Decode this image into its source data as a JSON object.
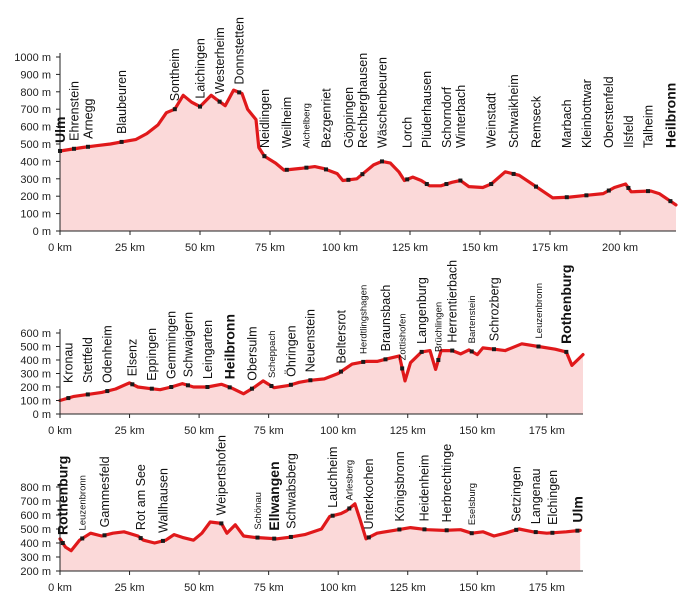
{
  "chart_data": [
    {
      "type": "area",
      "title": "",
      "xlabel": "",
      "ylabel": "",
      "xlim": [
        0,
        220
      ],
      "ylim": [
        0,
        1000
      ],
      "y_unit": " m",
      "x_unit": " km",
      "grid": false,
      "colors": {
        "line": "#e0191b",
        "fill": "#fbd9d9"
      },
      "x_ticks": [
        0,
        25,
        50,
        75,
        100,
        125,
        150,
        175,
        200
      ],
      "y_ticks": [
        0,
        100,
        200,
        300,
        400,
        500,
        600,
        700,
        800,
        900,
        1000
      ],
      "profile": [
        [
          0,
          460
        ],
        [
          8,
          480
        ],
        [
          13,
          490
        ],
        [
          18,
          500
        ],
        [
          23,
          515
        ],
        [
          27,
          525
        ],
        [
          31,
          560
        ],
        [
          35,
          610
        ],
        [
          38,
          680
        ],
        [
          41,
          700
        ],
        [
          44,
          780
        ],
        [
          47,
          740
        ],
        [
          50,
          715
        ],
        [
          54,
          780
        ],
        [
          56,
          755
        ],
        [
          59,
          720
        ],
        [
          62,
          810
        ],
        [
          65,
          790
        ],
        [
          67,
          700
        ],
        [
          70,
          640
        ],
        [
          71,
          480
        ],
        [
          73,
          430
        ],
        [
          77,
          390
        ],
        [
          80,
          350
        ],
        [
          86,
          360
        ],
        [
          91,
          370
        ],
        [
          94,
          360
        ],
        [
          99,
          330
        ],
        [
          101,
          290
        ],
        [
          106,
          300
        ],
        [
          109,
          340
        ],
        [
          112,
          380
        ],
        [
          115,
          400
        ],
        [
          118,
          390
        ],
        [
          121,
          340
        ],
        [
          123,
          290
        ],
        [
          126,
          310
        ],
        [
          129,
          290
        ],
        [
          132,
          260
        ],
        [
          136,
          260
        ],
        [
          140,
          280
        ],
        [
          143,
          290
        ],
        [
          146,
          255
        ],
        [
          151,
          250
        ],
        [
          154,
          270
        ],
        [
          159,
          340
        ],
        [
          164,
          320
        ],
        [
          170,
          255
        ],
        [
          176,
          190
        ],
        [
          182,
          195
        ],
        [
          188,
          205
        ],
        [
          194,
          215
        ],
        [
          198,
          250
        ],
        [
          202,
          270
        ],
        [
          204,
          225
        ],
        [
          211,
          230
        ],
        [
          214,
          215
        ],
        [
          220,
          150
        ]
      ],
      "places": [
        {
          "name": "Ulm",
          "km": 0,
          "bold": true
        },
        {
          "name": "Ehrenstein",
          "km": 5
        },
        {
          "name": "Arnegg",
          "km": 10
        },
        {
          "name": "Blaubeuren",
          "km": 22
        },
        {
          "name": "Sontheim",
          "km": 41
        },
        {
          "name": "Laichingen",
          "km": 50
        },
        {
          "name": "Westerheim",
          "km": 57
        },
        {
          "name": "Donnstetten",
          "km": 64
        },
        {
          "name": "Neidlingen",
          "km": 73
        },
        {
          "name": "Weilheim",
          "km": 81
        },
        {
          "name": "Aichelberg",
          "km": 88,
          "small": true
        },
        {
          "name": "Bezgenriet",
          "km": 95
        },
        {
          "name": "Göppingen",
          "km": 103
        },
        {
          "name": "Rechberghausen",
          "km": 108
        },
        {
          "name": "Wäschenbeuren",
          "km": 115
        },
        {
          "name": "Lorch",
          "km": 124
        },
        {
          "name": "Plüderhausen",
          "km": 131
        },
        {
          "name": "Schorndorf",
          "km": 138
        },
        {
          "name": "Winterbach",
          "km": 143
        },
        {
          "name": "Weinstadt",
          "km": 154
        },
        {
          "name": "Schwaikheim",
          "km": 162
        },
        {
          "name": "Remseck",
          "km": 170
        },
        {
          "name": "Marbach",
          "km": 181
        },
        {
          "name": "Kleinbottwar",
          "km": 188
        },
        {
          "name": "Oberstenfeld",
          "km": 196
        },
        {
          "name": "Ilsfeld",
          "km": 203
        },
        {
          "name": "Talheim",
          "km": 210
        },
        {
          "name": "Heilbronn",
          "km": 218,
          "bold": true
        }
      ]
    },
    {
      "type": "area",
      "title": "",
      "xlabel": "",
      "ylabel": "",
      "xlim": [
        0,
        188
      ],
      "ylim": [
        0,
        600
      ],
      "y_unit": " m",
      "x_unit": " km",
      "grid": false,
      "colors": {
        "line": "#e0191b",
        "fill": "#fbd9d9"
      },
      "x_ticks": [
        0,
        25,
        50,
        75,
        100,
        125,
        150,
        175
      ],
      "y_ticks": [
        0,
        100,
        200,
        300,
        400,
        500,
        600
      ],
      "profile": [
        [
          0,
          100
        ],
        [
          5,
          130
        ],
        [
          10,
          145
        ],
        [
          15,
          160
        ],
        [
          20,
          185
        ],
        [
          25,
          230
        ],
        [
          28,
          200
        ],
        [
          32,
          190
        ],
        [
          36,
          180
        ],
        [
          40,
          200
        ],
        [
          44,
          225
        ],
        [
          48,
          200
        ],
        [
          53,
          200
        ],
        [
          58,
          220
        ],
        [
          62,
          190
        ],
        [
          66,
          150
        ],
        [
          70,
          200
        ],
        [
          73,
          245
        ],
        [
          77,
          195
        ],
        [
          82,
          210
        ],
        [
          86,
          235
        ],
        [
          90,
          250
        ],
        [
          95,
          260
        ],
        [
          100,
          300
        ],
        [
          105,
          370
        ],
        [
          110,
          390
        ],
        [
          114,
          390
        ],
        [
          118,
          410
        ],
        [
          122,
          430
        ],
        [
          124,
          245
        ],
        [
          126,
          380
        ],
        [
          130,
          460
        ],
        [
          133,
          470
        ],
        [
          135,
          330
        ],
        [
          137,
          470
        ],
        [
          141,
          470
        ],
        [
          144,
          445
        ],
        [
          147,
          475
        ],
        [
          150,
          440
        ],
        [
          152,
          490
        ],
        [
          156,
          480
        ],
        [
          160,
          470
        ],
        [
          166,
          520
        ],
        [
          172,
          500
        ],
        [
          178,
          480
        ],
        [
          182,
          460
        ],
        [
          184,
          360
        ],
        [
          188,
          440
        ]
      ],
      "places": [
        {
          "name": "Kronau",
          "km": 3
        },
        {
          "name": "Stettfeld",
          "km": 10
        },
        {
          "name": "Odenheim",
          "km": 17
        },
        {
          "name": "Elsenz",
          "km": 26
        },
        {
          "name": "Eppingen",
          "km": 33
        },
        {
          "name": "Gemmingen",
          "km": 40
        },
        {
          "name": "Schwaigern",
          "km": 46
        },
        {
          "name": "Leingarten",
          "km": 53
        },
        {
          "name": "Heilbronn",
          "km": 61,
          "bold": true
        },
        {
          "name": "Obersulm",
          "km": 69
        },
        {
          "name": "Scheppach",
          "km": 76,
          "small": true
        },
        {
          "name": "Öhringen",
          "km": 83
        },
        {
          "name": "Neuenstein",
          "km": 90
        },
        {
          "name": "Beltersrot",
          "km": 101
        },
        {
          "name": "Herdtlingshagen",
          "km": 109,
          "small": true
        },
        {
          "name": "Braunsbach",
          "km": 117
        },
        {
          "name": "Zottishofen",
          "km": 123,
          "small": true
        },
        {
          "name": "Langenburg",
          "km": 130
        },
        {
          "name": "Brüchlingen",
          "km": 136,
          "small": true
        },
        {
          "name": "Herrentierbach",
          "km": 141
        },
        {
          "name": "Bartenstein",
          "km": 148,
          "small": true
        },
        {
          "name": "Schrozberg",
          "km": 156
        },
        {
          "name": "Leuzenbronn",
          "km": 172,
          "small": true
        },
        {
          "name": "Rothenburg",
          "km": 182,
          "bold": true
        }
      ]
    },
    {
      "type": "area",
      "title": "",
      "xlabel": "",
      "ylabel": "",
      "xlim": [
        0,
        188
      ],
      "ylim": [
        200,
        800
      ],
      "y_unit": " m",
      "x_unit": " km",
      "grid": false,
      "colors": {
        "line": "#e0191b",
        "fill": "#fbd9d9"
      },
      "x_ticks": [
        0,
        25,
        50,
        75,
        100,
        125,
        150,
        175
      ],
      "y_ticks": [
        200,
        300,
        400,
        500,
        600,
        700,
        800
      ],
      "profile": [
        [
          0,
          430
        ],
        [
          2,
          370
        ],
        [
          4,
          345
        ],
        [
          7,
          420
        ],
        [
          11,
          470
        ],
        [
          15,
          450
        ],
        [
          19,
          470
        ],
        [
          23,
          480
        ],
        [
          28,
          450
        ],
        [
          30,
          420
        ],
        [
          34,
          400
        ],
        [
          38,
          420
        ],
        [
          41,
          460
        ],
        [
          44,
          440
        ],
        [
          48,
          420
        ],
        [
          51,
          470
        ],
        [
          54,
          550
        ],
        [
          58,
          540
        ],
        [
          60,
          470
        ],
        [
          63,
          530
        ],
        [
          66,
          450
        ],
        [
          70,
          440
        ],
        [
          74,
          435
        ],
        [
          78,
          430
        ],
        [
          82,
          440
        ],
        [
          88,
          460
        ],
        [
          94,
          500
        ],
        [
          97,
          590
        ],
        [
          101,
          610
        ],
        [
          103,
          630
        ],
        [
          106,
          680
        ],
        [
          108,
          560
        ],
        [
          110,
          430
        ],
        [
          114,
          470
        ],
        [
          120,
          490
        ],
        [
          126,
          510
        ],
        [
          132,
          495
        ],
        [
          138,
          490
        ],
        [
          144,
          495
        ],
        [
          148,
          470
        ],
        [
          152,
          480
        ],
        [
          156,
          450
        ],
        [
          160,
          470
        ],
        [
          165,
          500
        ],
        [
          170,
          480
        ],
        [
          175,
          470
        ],
        [
          182,
          480
        ],
        [
          187,
          490
        ]
      ],
      "places": [
        {
          "name": "Rothenburg",
          "km": 1,
          "bold": true
        },
        {
          "name": "Leuzenbronn",
          "km": 8,
          "small": true
        },
        {
          "name": "Gammesfeld",
          "km": 16
        },
        {
          "name": "Rot am See",
          "km": 29
        },
        {
          "name": "Wallhausen",
          "km": 37
        },
        {
          "name": "Weipertshofen",
          "km": 58
        },
        {
          "name": "Schönau",
          "km": 71,
          "small": true
        },
        {
          "name": "Ellwangen",
          "km": 77,
          "bold": true
        },
        {
          "name": "Schwabsberg",
          "km": 83
        },
        {
          "name": "Lauchheim",
          "km": 98
        },
        {
          "name": "Arlesberg",
          "km": 104,
          "small": true
        },
        {
          "name": "Unterkochen",
          "km": 111
        },
        {
          "name": "Königsbronn",
          "km": 122
        },
        {
          "name": "Heidenheim",
          "km": 131
        },
        {
          "name": "Herbrechtinge",
          "km": 139
        },
        {
          "name": "Eselsburg",
          "km": 148,
          "small": true
        },
        {
          "name": "Setzingen",
          "km": 164
        },
        {
          "name": "Langenau",
          "km": 171
        },
        {
          "name": "Elchingen",
          "km": 177
        },
        {
          "name": "Ulm",
          "km": 186,
          "bold": true
        }
      ]
    }
  ]
}
